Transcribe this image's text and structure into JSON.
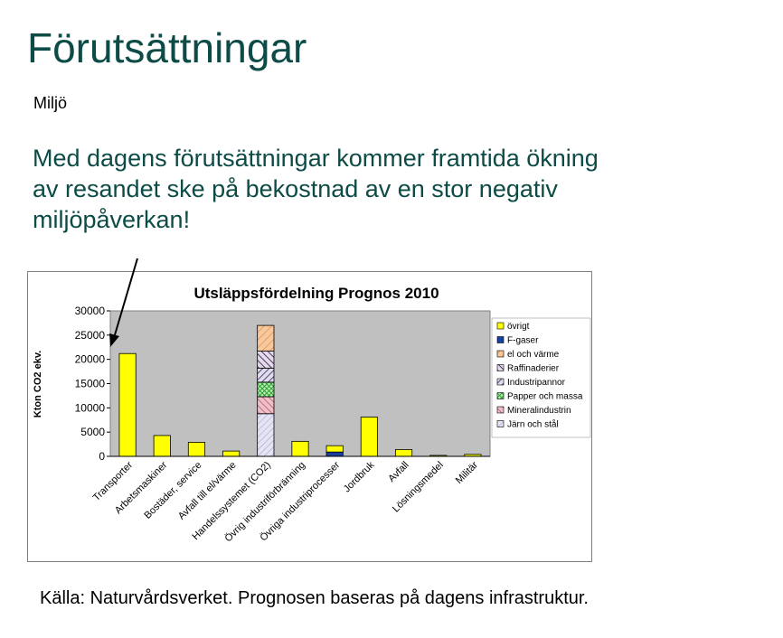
{
  "slide": {
    "title": "Förutsättningar",
    "subtitle": "Miljö",
    "statement": "Med dagens förutsättningar kommer framtida ökning av resandet ske på bekostnad av en stor negativ miljöpåverkan!",
    "source": "Källa: Naturvårdsverket. Prognosen baseras på dagens infrastruktur."
  },
  "chart_data": {
    "type": "bar",
    "stacked": true,
    "title": "Utsläppsfördelning Prognos 2010",
    "xlabel": "",
    "ylabel": "Kton CO2 ekv.",
    "ylim": [
      0,
      30000
    ],
    "yticks": [
      "0",
      "5000",
      "10000",
      "15000",
      "20000",
      "25000",
      "30000"
    ],
    "grid": false,
    "legend_position": "right",
    "categories": [
      "Transporter",
      "Arbetsmaskiner",
      "Bostäder, service",
      "Avfall till el/värme",
      "Handelssystemet (CO2)",
      "Övrig industriförbränning",
      "Övriga industriprocesser",
      "Jordbruk",
      "Avfall",
      "Lösningsmedel",
      "Militär"
    ],
    "series": [
      {
        "name": "Järn och stål",
        "color": "#e4e4f4",
        "pattern": "hatch-light",
        "values": [
          0,
          0,
          0,
          0,
          8800,
          0,
          0,
          0,
          0,
          0,
          0
        ]
      },
      {
        "name": "Mineralindustrin",
        "color": "#f0c0c8",
        "pattern": "hatch-rose",
        "values": [
          0,
          0,
          0,
          0,
          3500,
          0,
          0,
          0,
          0,
          0,
          0
        ]
      },
      {
        "name": "Papper och massa",
        "color": "#b8f0b8",
        "pattern": "hatch-green",
        "values": [
          0,
          0,
          0,
          0,
          3000,
          0,
          0,
          0,
          0,
          0,
          0
        ]
      },
      {
        "name": "Industripannor",
        "color": "#e0dcec",
        "pattern": "hatch-dark",
        "values": [
          0,
          0,
          0,
          0,
          2900,
          0,
          0,
          0,
          0,
          0,
          0
        ]
      },
      {
        "name": "Raffinaderier",
        "color": "#e0dcec",
        "pattern": "hatch-cross",
        "values": [
          0,
          0,
          0,
          0,
          3500,
          0,
          0,
          0,
          0,
          0,
          0
        ]
      },
      {
        "name": "el och värme",
        "color": "#f6c89a",
        "pattern": "hatch-orange",
        "values": [
          0,
          0,
          0,
          0,
          5300,
          0,
          0,
          0,
          0,
          0,
          0
        ]
      },
      {
        "name": "F-gaser",
        "color": "#1a3f9c",
        "pattern": "solid",
        "values": [
          0,
          0,
          0,
          0,
          0,
          0,
          900,
          0,
          0,
          0,
          0
        ]
      },
      {
        "name": "övrigt",
        "color": "#ffff00",
        "pattern": "solid",
        "values": [
          21200,
          4300,
          2900,
          1100,
          0,
          3100,
          1300,
          8100,
          1400,
          200,
          400
        ]
      }
    ]
  }
}
